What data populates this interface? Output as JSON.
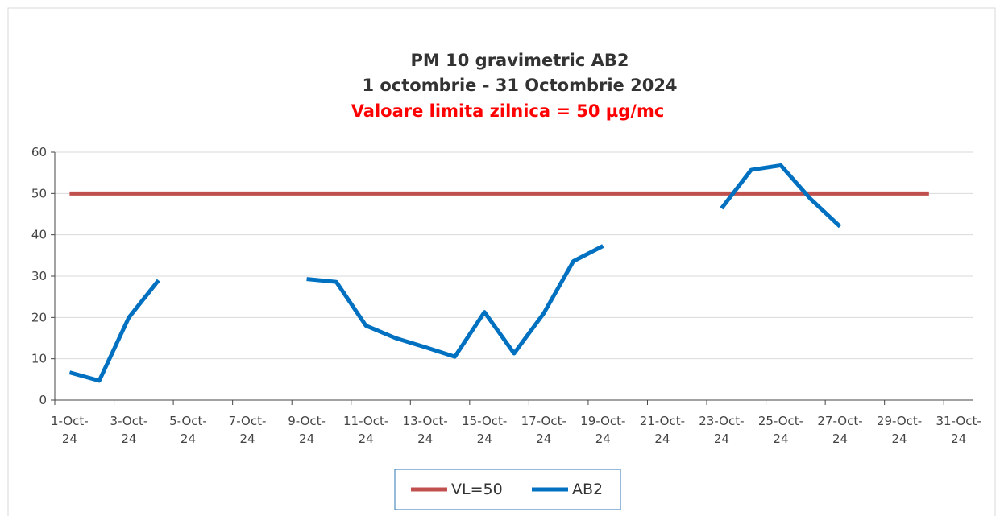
{
  "chart_data": {
    "type": "line",
    "title": "PM 10 gravimetric AB2",
    "subtitle": "1 octombrie  - 31 Octombrie  2024",
    "annotation": "Valoare limita zilnica = 50 µg/mc",
    "categories": [
      "1-Oct-24",
      null,
      "3-Oct-24",
      null,
      "5-Oct-24",
      null,
      "7-Oct-24",
      null,
      "9-Oct-24",
      null,
      "11-Oct-24",
      null,
      "13-Oct-24",
      null,
      "15-Oct-24",
      null,
      "17-Oct-24",
      null,
      "19-Oct-24",
      null,
      "21-Oct-24",
      null,
      "23-Oct-24",
      null,
      "25-Oct-24",
      null,
      "27-Oct-24",
      null,
      "29-Oct-24",
      null,
      "31-Oct-24"
    ],
    "series": [
      {
        "name": "VL=50",
        "color": "#c0504d",
        "values": [
          50,
          50,
          50,
          50,
          50,
          50,
          50,
          50,
          50,
          50,
          50,
          50,
          50,
          50,
          50,
          50,
          50,
          50,
          50,
          50,
          50,
          50,
          50,
          50,
          50,
          50,
          50,
          50,
          50,
          50,
          null
        ]
      },
      {
        "name": "AB2",
        "color": "#0070c0",
        "values": [
          6.7,
          4.7,
          20,
          29,
          null,
          null,
          null,
          null,
          29.3,
          28.6,
          18,
          15,
          12.8,
          10.5,
          21.3,
          11.3,
          21,
          33.6,
          37.3,
          null,
          null,
          null,
          46.4,
          55.7,
          56.8,
          48.7,
          42,
          null,
          null,
          null,
          null
        ]
      }
    ],
    "ylim": [
      0,
      60
    ],
    "yticks": [
      0,
      10,
      20,
      30,
      40,
      50,
      60
    ],
    "grid": true,
    "legend": "bottom"
  }
}
